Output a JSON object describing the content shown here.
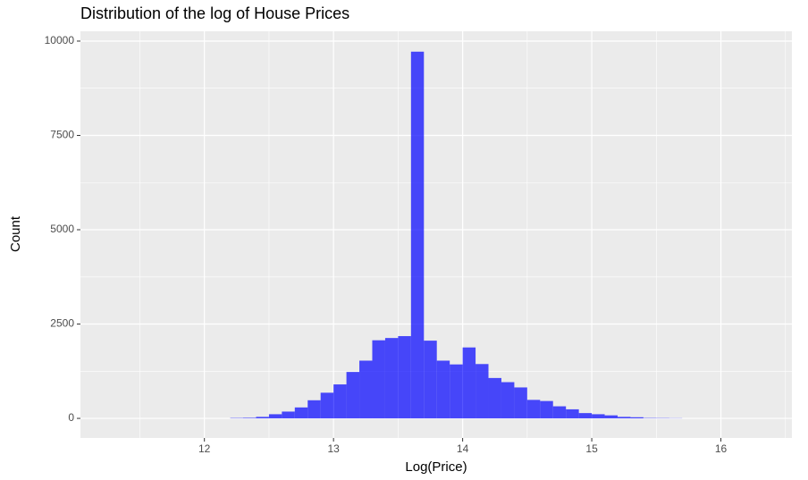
{
  "chart_data": {
    "type": "histogram",
    "title": "Distribution of the log of House Prices",
    "x_label": "Log(Price)",
    "y_label": "Count",
    "bins": [
      12.2,
      12.3,
      12.4,
      12.5,
      12.6,
      12.7,
      12.8,
      12.9,
      13.0,
      13.1,
      13.2,
      13.3,
      13.4,
      13.5,
      13.6,
      13.7,
      13.8,
      13.9,
      14.0,
      14.1,
      14.2,
      14.3,
      14.4,
      14.5,
      14.6,
      14.7,
      14.8,
      14.9,
      15.0,
      15.1,
      15.2,
      15.3,
      15.4,
      15.5,
      15.6,
      15.7
    ],
    "values": [
      10,
      15,
      40,
      110,
      180,
      290,
      480,
      680,
      900,
      1230,
      1530,
      2070,
      2130,
      2180,
      9720,
      2060,
      1530,
      1430,
      1880,
      1440,
      1070,
      960,
      820,
      490,
      460,
      320,
      240,
      140,
      110,
      80,
      40,
      30,
      10,
      8,
      5
    ],
    "color": "#0000ff",
    "alpha": 0.7,
    "xlim": [
      11.04,
      16.55
    ],
    "ylim": [
      -520,
      10260
    ],
    "xticks": [
      12,
      13,
      14,
      15,
      16
    ],
    "yticks": [
      0,
      2500,
      5000,
      7500,
      10000
    ],
    "x_minor_grid": [
      11.5,
      12.5,
      13.5,
      14.5,
      15.5,
      16.5
    ],
    "y_minor_grid": [
      1250,
      3750,
      6250,
      8750
    ],
    "grid": true
  }
}
